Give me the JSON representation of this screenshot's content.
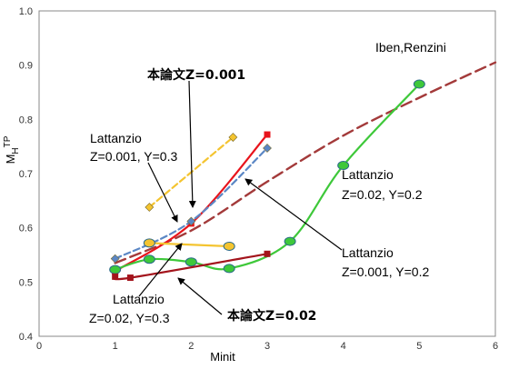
{
  "chart_data": {
    "type": "line",
    "title": "",
    "xlabel": "Minit",
    "ylabel": {
      "base": "M",
      "sub": "H",
      "sup": "TP"
    },
    "xlim": [
      0,
      6
    ],
    "ylim": [
      0.4,
      1.0
    ],
    "xticks": [
      "0",
      "1",
      "2",
      "3",
      "4",
      "5",
      "6"
    ],
    "yticks": [
      "0.4",
      "0.5",
      "0.6",
      "0.7",
      "0.8",
      "0.9",
      "1.0"
    ],
    "grid": false,
    "series": [
      {
        "name": "Iben,Renzini",
        "color": "#a33a3a",
        "dash": "dashed",
        "marker": "none",
        "x": [
          1.0,
          2.0,
          3.0,
          4.0,
          5.0,
          6.0
        ],
        "y": [
          0.535,
          0.595,
          0.685,
          0.77,
          0.84,
          0.905
        ]
      },
      {
        "name": "本論文Z=0.001",
        "color": "#e8141c",
        "dash": "solid",
        "marker": "square",
        "x": [
          1.0,
          2.0,
          3.0
        ],
        "y": [
          0.52,
          0.608,
          0.772
        ]
      },
      {
        "name": "Lattanzio Z=0.001, Y=0.3",
        "color": "#f4c430",
        "dash": "dashed",
        "marker": "diamond",
        "x": [
          1.45,
          2.55
        ],
        "y": [
          0.638,
          0.767
        ]
      },
      {
        "name": "Lattanzio Z=0.001, Y=0.2",
        "color": "#5b87c5",
        "dash": "dashed",
        "marker": "diamond",
        "x": [
          1.0,
          2.0,
          3.0
        ],
        "y": [
          0.543,
          0.612,
          0.747
        ]
      },
      {
        "name": "Lattanzio Z=0.02, Y=0.2",
        "color": "#3ec83a",
        "dash": "solid",
        "marker": "circle",
        "x": [
          1.0,
          1.45,
          2.0,
          2.5,
          3.3,
          4.0,
          5.0
        ],
        "y": [
          0.523,
          0.542,
          0.537,
          0.525,
          0.575,
          0.715,
          0.865
        ]
      },
      {
        "name": "Lattanzio Z=0.02, Y=0.3",
        "color": "#f4c430",
        "dash": "solid",
        "marker": "circle",
        "x": [
          1.45,
          2.5
        ],
        "y": [
          0.572,
          0.566
        ]
      },
      {
        "name": "本論文Z=0.02",
        "color": "#a3141c",
        "dash": "solid",
        "marker": "square",
        "x": [
          1.0,
          1.2,
          3.0
        ],
        "y": [
          0.51,
          0.508,
          0.552
        ]
      }
    ],
    "annotations": [
      {
        "key": "ann_ir",
        "text": "Iben,Renzini"
      },
      {
        "key": "ann_z001",
        "text": "本論文Z=0.001"
      },
      {
        "key": "ann_lz1a",
        "text": "Lattanzio"
      },
      {
        "key": "ann_lz1b",
        "text": "Z=0.001, Y=0.3"
      },
      {
        "key": "ann_lz2a",
        "text": "Lattanzio"
      },
      {
        "key": "ann_lz2b",
        "text": "Z=0.02, Y=0.2"
      },
      {
        "key": "ann_lz3a",
        "text": "Lattanzio"
      },
      {
        "key": "ann_lz3b",
        "text": "Z=0.001, Y=0.2"
      },
      {
        "key": "ann_lz4a",
        "text": "Lattanzio"
      },
      {
        "key": "ann_lz4b",
        "text": "Z=0.02, Y=0.3"
      },
      {
        "key": "ann_z002",
        "text": "本論文Z=0.02"
      }
    ]
  }
}
